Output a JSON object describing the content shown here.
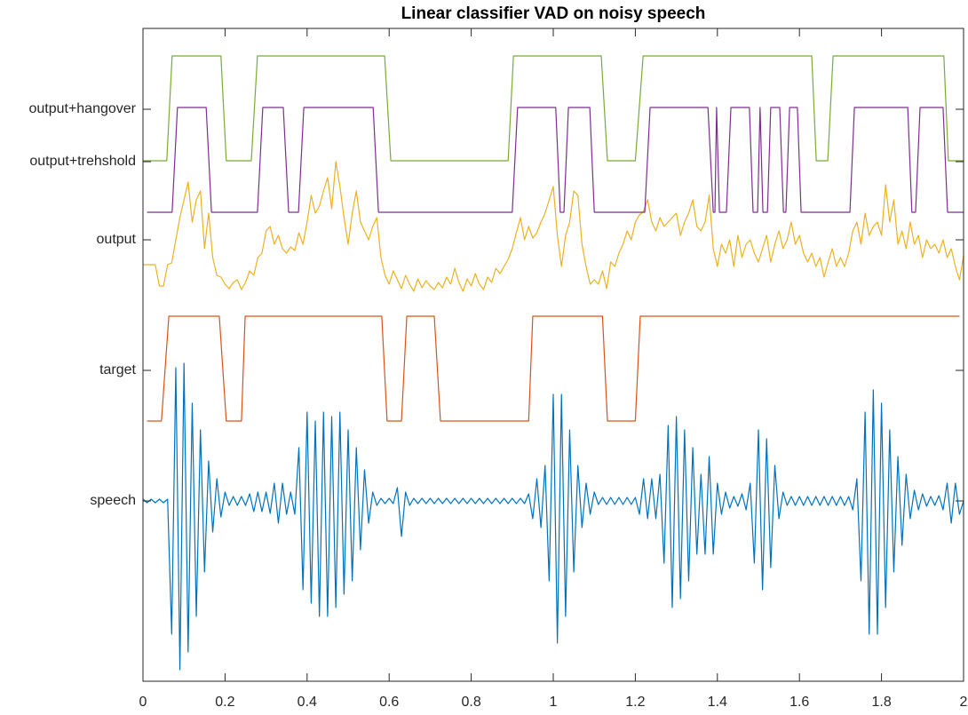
{
  "chart_data": {
    "type": "line",
    "title": "Linear classifier VAD on noisy speech",
    "xlim": [
      0,
      2
    ],
    "xticks": [
      0,
      0.2,
      0.4,
      0.6,
      0.8,
      1,
      1.2,
      1.4,
      1.6,
      1.8,
      2
    ],
    "ylim": [
      -203,
      532
    ],
    "yticks": [
      {
        "value": 0,
        "label": "speech"
      },
      {
        "value": 147,
        "label": "target"
      },
      {
        "value": 294,
        "label": "output"
      },
      {
        "value": 382,
        "label": "output+trehshold"
      },
      {
        "value": 441,
        "label": "output+hangover"
      }
    ],
    "x": [
      0,
      0.01,
      0.02,
      0.03,
      0.04,
      0.05,
      0.06,
      0.07,
      0.08,
      0.09,
      0.1,
      0.11,
      0.12,
      0.13,
      0.14,
      0.15,
      0.16,
      0.17,
      0.18,
      0.19,
      0.2,
      0.21,
      0.22,
      0.23,
      0.24,
      0.25,
      0.26,
      0.27,
      0.28,
      0.29,
      0.3,
      0.31,
      0.32,
      0.33,
      0.34,
      0.35,
      0.36,
      0.37,
      0.38,
      0.39,
      0.4,
      0.41,
      0.42,
      0.43,
      0.44,
      0.45,
      0.46,
      0.47,
      0.48,
      0.49,
      0.5,
      0.51,
      0.52,
      0.53,
      0.54,
      0.55,
      0.56,
      0.57,
      0.58,
      0.59,
      0.6,
      0.61,
      0.62,
      0.63,
      0.64,
      0.65,
      0.66,
      0.67,
      0.68,
      0.69,
      0.7,
      0.71,
      0.72,
      0.73,
      0.74,
      0.75,
      0.76,
      0.77,
      0.78,
      0.79,
      0.8,
      0.81,
      0.82,
      0.83,
      0.84,
      0.85,
      0.86,
      0.87,
      0.88,
      0.89,
      0.9,
      0.91,
      0.92,
      0.93,
      0.94,
      0.95,
      0.96,
      0.97,
      0.98,
      0.99,
      1,
      1.01,
      1.02,
      1.03,
      1.04,
      1.05,
      1.06,
      1.07,
      1.08,
      1.09,
      1.1,
      1.11,
      1.12,
      1.13,
      1.14,
      1.15,
      1.16,
      1.17,
      1.18,
      1.19,
      1.2,
      1.21,
      1.22,
      1.23,
      1.24,
      1.25,
      1.26,
      1.27,
      1.28,
      1.29,
      1.3,
      1.31,
      1.32,
      1.33,
      1.34,
      1.35,
      1.36,
      1.37,
      1.38,
      1.39,
      1.4,
      1.41,
      1.42,
      1.43,
      1.44,
      1.45,
      1.46,
      1.47,
      1.48,
      1.49,
      1.5,
      1.51,
      1.52,
      1.53,
      1.54,
      1.55,
      1.56,
      1.57,
      1.58,
      1.59,
      1.6,
      1.61,
      1.62,
      1.63,
      1.64,
      1.65,
      1.66,
      1.67,
      1.68,
      1.69,
      1.7,
      1.71,
      1.72,
      1.73,
      1.74,
      1.75,
      1.76,
      1.77,
      1.78,
      1.79,
      1.8,
      1.81,
      1.82,
      1.83,
      1.84,
      1.85,
      1.86,
      1.87,
      1.88,
      1.89,
      1.9,
      1.91,
      1.92,
      1.93,
      1.94,
      1.95,
      1.96,
      1.97,
      1.98,
      1.99,
      2
    ],
    "series": [
      {
        "color": "#0072bd",
        "values": [
          2,
          -2,
          2,
          -2,
          2,
          -2,
          2,
          -150,
          150,
          -190,
          155,
          -170,
          110,
          -130,
          80,
          -80,
          45,
          -35,
          25,
          -18,
          10,
          -5,
          5,
          -5,
          5,
          -5,
          8,
          -12,
          10,
          -12,
          10,
          -14,
          20,
          -25,
          20,
          -15,
          10,
          -15,
          60,
          -100,
          100,
          -115,
          90,
          -130,
          100,
          -130,
          95,
          -120,
          100,
          -105,
          80,
          -90,
          60,
          -55,
          35,
          -25,
          10,
          -5,
          3,
          -3,
          3,
          -3,
          15,
          -40,
          10,
          -5,
          3,
          -3,
          3,
          -3,
          3,
          -3,
          3,
          -3,
          3,
          -3,
          3,
          -3,
          3,
          -3,
          3,
          -3,
          3,
          -3,
          3,
          -3,
          3,
          -3,
          3,
          -3,
          3,
          -3,
          3,
          -3,
          8,
          -20,
          25,
          -30,
          40,
          -90,
          120,
          -160,
          120,
          -130,
          80,
          -80,
          40,
          -30,
          20,
          -15,
          10,
          -4,
          4,
          -4,
          4,
          -4,
          4,
          -4,
          4,
          -4,
          4,
          -15,
          25,
          -20,
          25,
          -20,
          30,
          -70,
          85,
          -120,
          95,
          -110,
          80,
          -90,
          60,
          -60,
          30,
          -60,
          50,
          -60,
          20,
          -15,
          10,
          -8,
          5,
          -6,
          8,
          -10,
          20,
          -70,
          80,
          -100,
          70,
          -75,
          40,
          -20,
          10,
          -5,
          5,
          -5,
          5,
          -5,
          5,
          -5,
          5,
          -5,
          5,
          -5,
          5,
          -5,
          5,
          -5,
          5,
          -10,
          25,
          -90,
          100,
          -150,
          125,
          -150,
          110,
          -120,
          80,
          -80,
          50,
          -50,
          30,
          -20,
          12,
          -10,
          8,
          -6,
          5,
          -5,
          6,
          -10,
          20,
          -25,
          20,
          -15,
          0
        ]
      },
      {
        "color": "#d95319",
        "x": [
          0.01,
          0.045,
          0.063,
          0.186,
          0.203,
          0.24,
          0.249,
          0.582,
          0.595,
          0.63,
          0.643,
          0.71,
          0.725,
          0.94,
          0.95,
          1.12,
          1.132,
          1.2,
          1.212,
          1.99
        ],
        "values": [
          90,
          90,
          208,
          208,
          90,
          90,
          208,
          208,
          90,
          90,
          208,
          208,
          90,
          90,
          208,
          208,
          90,
          90,
          208,
          208
        ]
      },
      {
        "color": "#edb120",
        "values": [
          266,
          266,
          266,
          266,
          242,
          242,
          266,
          268,
          294,
          319,
          339,
          359,
          314,
          339,
          349,
          284,
          324,
          274,
          254,
          252,
          244,
          239,
          246,
          249,
          238,
          246,
          259,
          254,
          274,
          279,
          304,
          309,
          289,
          299,
          284,
          279,
          286,
          282,
          302,
          289,
          314,
          344,
          324,
          332,
          349,
          364,
          329,
          382,
          354,
          319,
          289,
          324,
          349,
          314,
          304,
          294,
          309,
          319,
          274,
          254,
          244,
          259,
          249,
          239,
          254,
          244,
          236,
          250,
          240,
          248,
          242,
          238,
          246,
          240,
          252,
          244,
          262,
          246,
          236,
          250,
          242,
          256,
          244,
          238,
          252,
          246,
          262,
          256,
          264,
          272,
          284,
          302,
          319,
          294,
          309,
          296,
          302,
          314,
          324,
          339,
          354,
          299,
          264,
          299,
          314,
          349,
          344,
          289,
          264,
          244,
          249,
          244,
          259,
          239,
          269,
          264,
          279,
          289,
          304,
          294,
          314,
          322,
          326,
          339,
          314,
          304,
          319,
          309,
          314,
          319,
          324,
          299,
          314,
          324,
          339,
          309,
          304,
          314,
          344,
          284,
          264,
          289,
          279,
          294,
          264,
          299,
          274,
          289,
          294,
          279,
          269,
          284,
          299,
          269,
          289,
          304,
          284,
          294,
          314,
          289,
          299,
          279,
          269,
          279,
          264,
          274,
          252,
          269,
          284,
          264,
          274,
          264,
          279,
          304,
          314,
          289,
          324,
          299,
          309,
          314,
          299,
          356,
          314,
          339,
          289,
          304,
          284,
          314,
          289,
          299,
          274,
          294,
          284,
          289,
          279,
          294,
          274,
          284,
          264,
          249,
          276
        ]
      },
      {
        "color": "#7e2f8e",
        "x": [
          0.01,
          0.071,
          0.084,
          0.154,
          0.167,
          0.279,
          0.292,
          0.342,
          0.355,
          0.379,
          0.392,
          0.561,
          0.574,
          0.9,
          0.913,
          1.006,
          1.017,
          1.026,
          1.037,
          1.089,
          1.1,
          1.223,
          1.236,
          1.377,
          1.39,
          1.394,
          1.398,
          1.405,
          1.422,
          1.433,
          1.478,
          1.487,
          1.498,
          1.504,
          1.511,
          1.522,
          1.53,
          1.552,
          1.561,
          1.567,
          1.576,
          1.595,
          1.604,
          1.723,
          1.734,
          1.864,
          1.874,
          1.883,
          1.894,
          1.95,
          1.961,
          2
        ],
        "values": [
          325,
          325,
          443,
          443,
          325,
          325,
          443,
          443,
          325,
          325,
          443,
          443,
          325,
          325,
          443,
          443,
          325,
          325,
          443,
          443,
          325,
          325,
          443,
          443,
          325,
          325,
          443,
          325,
          325,
          443,
          443,
          325,
          325,
          443,
          325,
          325,
          443,
          443,
          325,
          325,
          443,
          443,
          325,
          325,
          443,
          443,
          325,
          325,
          443,
          443,
          325,
          325
        ]
      },
      {
        "color": "#77ac30",
        "x": [
          0,
          0.058,
          0.071,
          0.19,
          0.203,
          0.264,
          0.279,
          0.589,
          0.604,
          0.89,
          0.903,
          1.117,
          1.132,
          1.2,
          1.219,
          1.63,
          1.641,
          1.669,
          1.682,
          1.952,
          1.963,
          2
        ],
        "values": [
          383,
          383,
          501,
          501,
          383,
          383,
          501,
          501,
          383,
          383,
          501,
          501,
          383,
          383,
          501,
          501,
          383,
          383,
          501,
          501,
          383,
          383
        ]
      }
    ]
  }
}
